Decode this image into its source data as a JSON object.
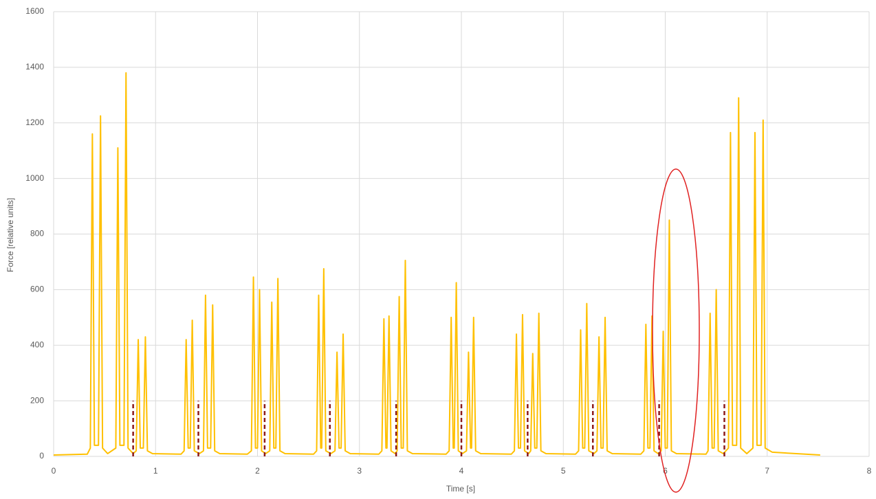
{
  "chart_data": {
    "type": "line",
    "x_label": "Time [s]",
    "y_label": "Force [relative units]",
    "xlim": [
      0,
      8
    ],
    "xticks": [
      0,
      1,
      2,
      3,
      4,
      5,
      6,
      7,
      8
    ],
    "ylim": [
      0,
      1600
    ],
    "yticks": [
      0,
      200,
      400,
      600,
      800,
      1000,
      1200,
      1400,
      1600
    ],
    "grid": true,
    "x": [
      0,
      0.33,
      0.36,
      0.38,
      0.4,
      0.44,
      0.46,
      0.48,
      0.53,
      0.61,
      0.63,
      0.65,
      0.69,
      0.71,
      0.73,
      0.78,
      0.81,
      0.83,
      0.85,
      0.88,
      0.9,
      0.92,
      0.97,
      1.25,
      1.28,
      1.3,
      1.32,
      1.34,
      1.36,
      1.38,
      1.43,
      1.47,
      1.49,
      1.51,
      1.54,
      1.56,
      1.58,
      1.63,
      1.9,
      1.94,
      1.96,
      1.98,
      2.0,
      2.02,
      2.04,
      2.08,
      2.12,
      2.14,
      2.16,
      2.18,
      2.2,
      2.22,
      2.27,
      2.55,
      2.58,
      2.6,
      2.62,
      2.63,
      2.65,
      2.67,
      2.72,
      2.76,
      2.78,
      2.8,
      2.82,
      2.84,
      2.86,
      2.91,
      3.19,
      3.22,
      3.24,
      3.26,
      3.27,
      3.29,
      3.31,
      3.35,
      3.37,
      3.39,
      3.41,
      3.43,
      3.45,
      3.47,
      3.52,
      3.85,
      3.88,
      3.9,
      3.92,
      3.93,
      3.95,
      3.97,
      4.01,
      4.05,
      4.07,
      4.09,
      4.1,
      4.12,
      4.14,
      4.19,
      4.49,
      4.52,
      4.54,
      4.56,
      4.58,
      4.6,
      4.62,
      4.66,
      4.68,
      4.7,
      4.72,
      4.74,
      4.76,
      4.78,
      4.83,
      5.12,
      5.15,
      5.17,
      5.19,
      5.21,
      5.23,
      5.25,
      5.3,
      5.33,
      5.35,
      5.37,
      5.39,
      5.41,
      5.43,
      5.48,
      5.76,
      5.79,
      5.81,
      5.83,
      5.85,
      5.87,
      5.89,
      5.93,
      5.96,
      5.98,
      6.0,
      6.02,
      6.04,
      6.06,
      6.11,
      6.4,
      6.42,
      6.44,
      6.46,
      6.48,
      6.5,
      6.52,
      6.57,
      6.62,
      6.64,
      6.66,
      6.7,
      6.72,
      6.74,
      6.8,
      6.86,
      6.88,
      6.9,
      6.94,
      6.96,
      6.98,
      7.05,
      7.52
    ],
    "series": [
      {
        "color": "#ffc000",
        "values": [
          5,
          8,
          30,
          1160,
          40,
          40,
          1225,
          30,
          10,
          30,
          1110,
          40,
          40,
          1380,
          30,
          10,
          20,
          420,
          30,
          30,
          430,
          20,
          10,
          8,
          20,
          420,
          30,
          30,
          490,
          20,
          10,
          20,
          580,
          30,
          30,
          545,
          20,
          10,
          8,
          20,
          645,
          30,
          30,
          600,
          20,
          10,
          20,
          555,
          30,
          30,
          640,
          20,
          10,
          8,
          20,
          580,
          30,
          30,
          675,
          20,
          10,
          20,
          375,
          30,
          30,
          440,
          20,
          10,
          8,
          20,
          495,
          30,
          30,
          505,
          20,
          10,
          20,
          575,
          30,
          30,
          705,
          20,
          10,
          8,
          20,
          500,
          30,
          30,
          625,
          20,
          10,
          20,
          375,
          30,
          30,
          500,
          20,
          10,
          8,
          20,
          440,
          30,
          30,
          510,
          20,
          10,
          20,
          370,
          30,
          30,
          515,
          20,
          10,
          8,
          20,
          455,
          30,
          30,
          550,
          20,
          10,
          20,
          430,
          30,
          30,
          500,
          20,
          10,
          8,
          20,
          475,
          30,
          30,
          505,
          20,
          10,
          20,
          450,
          30,
          30,
          850,
          20,
          10,
          8,
          20,
          515,
          30,
          30,
          600,
          20,
          10,
          30,
          1165,
          40,
          40,
          1290,
          30,
          10,
          30,
          1165,
          40,
          40,
          1210,
          30,
          15,
          5
        ]
      }
    ],
    "markers": {
      "color": "#8b1a1a",
      "x": [
        0.78,
        1.42,
        2.07,
        2.71,
        3.36,
        4.0,
        4.65,
        5.29,
        5.94,
        6.58
      ],
      "value": 200
    }
  }
}
